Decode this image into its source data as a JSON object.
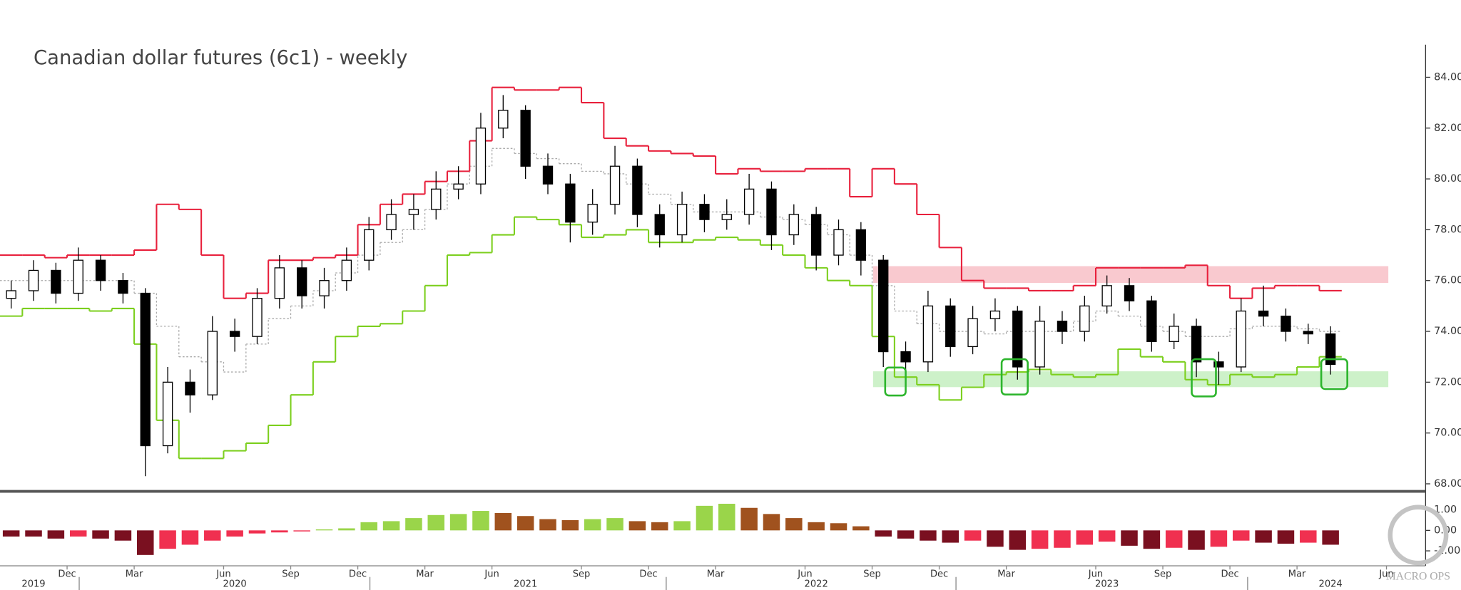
{
  "chart_data": {
    "type": "candlestick",
    "title": "Canadian dollar futures (6c1) - weekly",
    "categories": [
      null,
      null,
      null,
      "Dec",
      null,
      null,
      "Mar",
      null,
      null,
      null,
      "Jun",
      null,
      null,
      "Sep",
      null,
      null,
      "Dec",
      null,
      null,
      "Mar",
      null,
      null,
      "Jun",
      null,
      null,
      null,
      "Sep",
      null,
      null,
      "Dec",
      null,
      null,
      "Mar",
      null,
      null,
      null,
      "Jun",
      null,
      null,
      "Sep",
      null,
      null,
      "Dec",
      null,
      null,
      "Mar",
      null,
      null,
      null,
      "Jun",
      null,
      null,
      "Sep",
      null,
      null,
      "Dec",
      null,
      null,
      "Mar",
      null,
      null,
      null,
      "Jun"
    ],
    "year_labels": [
      null,
      "2019",
      null,
      null,
      null,
      null,
      null,
      null,
      null,
      null,
      "2020",
      null,
      null,
      null,
      null,
      null,
      null,
      null,
      null,
      null,
      null,
      null,
      null,
      "2021",
      null,
      null,
      null,
      null,
      null,
      null,
      null,
      null,
      null,
      null,
      null,
      null,
      "2022",
      null,
      null,
      null,
      null,
      null,
      null,
      null,
      null,
      null,
      null,
      null,
      null,
      "2023",
      null,
      null,
      null,
      null,
      null,
      null,
      null,
      null,
      null,
      "2024",
      null,
      null,
      null
    ],
    "open": [
      75.3,
      75.6,
      76.4,
      75.5,
      76.8,
      76.0,
      75.5,
      69.5,
      72.0,
      71.5,
      74.0,
      73.8,
      75.3,
      76.5,
      75.4,
      76.0,
      76.8,
      78.0,
      78.6,
      78.8,
      79.6,
      79.8,
      82.0,
      82.7,
      80.5,
      79.8,
      78.3,
      79.0,
      80.5,
      78.6,
      77.8,
      79.0,
      78.4,
      78.6,
      79.6,
      77.8,
      78.6,
      77.0,
      78.0,
      76.8,
      73.2,
      72.8,
      75.0,
      73.4,
      74.5,
      74.8,
      72.6,
      74.4,
      74.0,
      75.0,
      75.8,
      75.2,
      73.6,
      74.2,
      72.8,
      72.6,
      74.8,
      74.6,
      74.0,
      73.9,
      null,
      null,
      null
    ],
    "high": [
      76.0,
      76.8,
      76.7,
      77.3,
      77.0,
      76.3,
      75.7,
      72.6,
      72.5,
      74.6,
      74.5,
      75.7,
      77.0,
      76.8,
      76.5,
      77.3,
      78.5,
      79.2,
      79.4,
      80.3,
      80.5,
      82.6,
      83.3,
      82.9,
      81.0,
      80.2,
      79.6,
      81.3,
      80.8,
      79.0,
      79.5,
      79.4,
      79.2,
      80.2,
      79.9,
      79.0,
      78.9,
      78.4,
      78.3,
      77.0,
      73.6,
      75.6,
      75.3,
      75.0,
      75.3,
      75.0,
      75.0,
      74.8,
      75.4,
      76.2,
      76.1,
      75.4,
      74.7,
      74.5,
      73.2,
      75.3,
      75.8,
      74.9,
      74.3,
      74.2,
      null,
      null,
      null
    ],
    "low": [
      74.9,
      75.2,
      75.1,
      75.2,
      75.6,
      75.1,
      68.3,
      69.2,
      70.8,
      71.3,
      73.2,
      73.5,
      74.9,
      74.9,
      74.9,
      75.6,
      76.4,
      77.6,
      78.0,
      78.4,
      79.2,
      79.4,
      81.6,
      80.0,
      79.4,
      77.5,
      77.8,
      78.6,
      78.1,
      77.3,
      77.5,
      77.9,
      78.0,
      78.2,
      77.2,
      77.4,
      76.4,
      76.6,
      76.2,
      72.6,
      71.9,
      72.4,
      73.0,
      73.1,
      74.0,
      72.1,
      72.3,
      73.5,
      73.6,
      74.7,
      74.8,
      73.2,
      73.3,
      72.2,
      71.9,
      72.4,
      74.2,
      73.6,
      73.5,
      72.3,
      null,
      null,
      null
    ],
    "close": [
      75.6,
      76.4,
      75.5,
      76.8,
      76.0,
      75.5,
      69.5,
      72.0,
      71.5,
      74.0,
      73.8,
      75.3,
      76.5,
      75.4,
      76.0,
      76.8,
      78.0,
      78.6,
      78.8,
      79.6,
      79.8,
      82.0,
      82.7,
      80.5,
      79.8,
      78.3,
      79.0,
      80.5,
      78.6,
      77.8,
      79.0,
      78.4,
      78.6,
      79.6,
      77.8,
      78.6,
      77.0,
      78.0,
      76.8,
      73.2,
      72.8,
      75.0,
      73.4,
      74.5,
      74.8,
      72.6,
      74.4,
      74.0,
      75.0,
      75.8,
      75.2,
      73.6,
      74.2,
      72.8,
      72.6,
      74.8,
      74.6,
      74.0,
      73.9,
      72.7,
      null,
      null,
      null
    ],
    "up_color": "#ffffff",
    "down_color": "#000000",
    "upper_band": {
      "color": "#e8203c",
      "values": [
        77.0,
        77.0,
        76.9,
        77.0,
        77.0,
        77.0,
        77.2,
        79.0,
        78.8,
        77.0,
        75.3,
        75.5,
        76.8,
        76.8,
        76.9,
        77.0,
        78.2,
        79.0,
        79.4,
        79.9,
        80.3,
        81.5,
        83.6,
        83.5,
        83.5,
        83.6,
        83.0,
        81.6,
        81.3,
        81.1,
        81.0,
        80.9,
        80.2,
        80.4,
        80.3,
        80.3,
        80.4,
        80.4,
        79.3,
        80.4,
        79.8,
        78.6,
        77.3,
        76.0,
        75.7,
        75.7,
        75.6,
        75.6,
        75.8,
        76.5,
        76.5,
        76.5,
        76.5,
        76.6,
        75.8,
        75.3,
        75.7,
        75.8,
        75.8,
        75.6,
        null,
        null,
        null
      ]
    },
    "lower_band": {
      "color": "#7ccf1e",
      "values": [
        74.6,
        74.9,
        74.9,
        74.9,
        74.8,
        74.9,
        73.5,
        70.5,
        69.0,
        69.0,
        69.3,
        69.6,
        70.3,
        71.5,
        72.8,
        73.8,
        74.2,
        74.3,
        74.8,
        75.8,
        77.0,
        77.1,
        77.8,
        78.5,
        78.4,
        78.2,
        77.7,
        77.8,
        78.0,
        77.5,
        77.5,
        77.6,
        77.7,
        77.6,
        77.4,
        77.0,
        76.5,
        76.0,
        75.8,
        73.8,
        72.2,
        71.9,
        71.3,
        71.8,
        72.3,
        72.4,
        72.5,
        72.3,
        72.2,
        72.3,
        73.3,
        73.0,
        72.8,
        72.1,
        71.9,
        72.3,
        72.2,
        72.3,
        72.6,
        73.0,
        null,
        null,
        null
      ]
    },
    "middle_line": {
      "color": "#aaaaaa",
      "values": [
        76.0,
        76.0,
        76.0,
        76.0,
        76.0,
        76.0,
        75.5,
        74.2,
        73.0,
        72.8,
        72.4,
        73.5,
        74.5,
        75.0,
        75.6,
        76.3,
        77.0,
        77.5,
        78.0,
        78.8,
        79.8,
        80.5,
        81.2,
        81.0,
        80.8,
        80.6,
        80.3,
        80.2,
        79.8,
        79.4,
        79.0,
        78.7,
        78.7,
        78.7,
        78.5,
        78.4,
        78.2,
        77.8,
        77.0,
        75.8,
        74.8,
        74.3,
        74.0,
        74.0,
        73.9,
        74.0,
        74.0,
        74.0,
        74.4,
        74.8,
        74.6,
        74.2,
        74.0,
        73.8,
        73.8,
        74.1,
        74.2,
        74.2,
        74.1,
        74.0,
        null,
        null,
        null
      ]
    },
    "ylim": [
      67.74,
      85.21
    ],
    "yticks": [
      {
        "value": 68,
        "label": "68.000"
      },
      {
        "value": 70,
        "label": "70.000"
      },
      {
        "value": 72,
        "label": "72.000"
      },
      {
        "value": 74,
        "label": "74.000"
      },
      {
        "value": 76,
        "label": "76.000"
      },
      {
        "value": 78,
        "label": "78.000"
      },
      {
        "value": 80,
        "label": "80.000"
      },
      {
        "value": 82,
        "label": "82.000"
      },
      {
        "value": 84,
        "label": "84.000"
      }
    ],
    "indicator": {
      "type": "bar",
      "values": [
        -0.3,
        -0.3,
        -0.4,
        -0.3,
        -0.4,
        -0.5,
        -1.2,
        -0.9,
        -0.7,
        -0.5,
        -0.3,
        -0.15,
        -0.1,
        -0.05,
        0.05,
        0.1,
        0.4,
        0.45,
        0.6,
        0.75,
        0.8,
        0.95,
        0.85,
        0.7,
        0.55,
        0.5,
        0.55,
        0.6,
        0.45,
        0.4,
        0.45,
        1.2,
        1.3,
        1.1,
        0.8,
        0.6,
        0.4,
        0.35,
        0.2,
        -0.3,
        -0.4,
        -0.5,
        -0.6,
        -0.5,
        -0.8,
        -0.95,
        -0.9,
        -0.85,
        -0.7,
        -0.55,
        -0.75,
        -0.9,
        -0.85,
        -0.95,
        -0.8,
        -0.5,
        -0.6,
        -0.65,
        -0.6,
        -0.7,
        null,
        null,
        null
      ],
      "colors": {
        "positive_rising": "#9ad54a",
        "positive_falling": "#a0521e",
        "negative_falling": "#7a1020",
        "negative_rising": "#f03050"
      },
      "ylim": [
        -1.73,
        1.77
      ],
      "yticks": [
        {
          "value": 1,
          "label": "1.00"
        },
        {
          "value": 0,
          "label": "0.00"
        },
        {
          "value": -1,
          "label": "-1.00"
        }
      ]
    },
    "watermark": "MACRO OPS"
  }
}
